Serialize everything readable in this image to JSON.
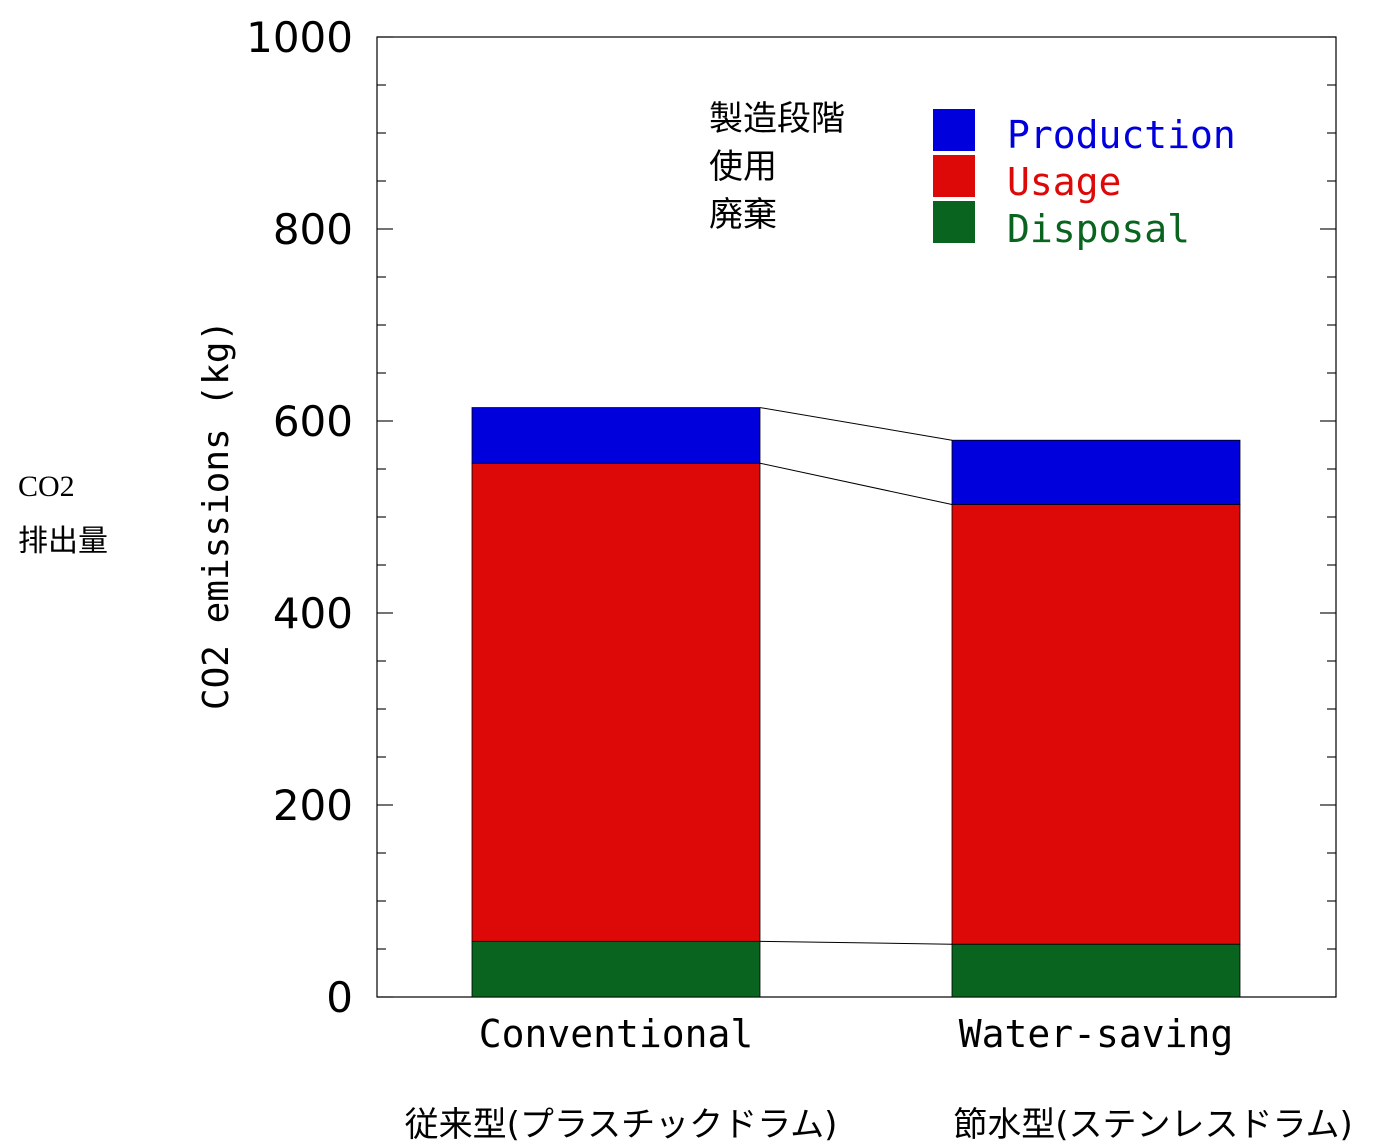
{
  "side_label": {
    "line1": "CO2",
    "line2": "排出量"
  },
  "colors": {
    "production": "#0000dd",
    "usage": "#dd0808",
    "disposal": "#08641e",
    "axis": "#000000"
  },
  "chart_data": {
    "type": "bar",
    "stacked": true,
    "categories": [
      "Conventional",
      "Water-saving"
    ],
    "category_sublabels": [
      "従来型(プラスチックドラム)",
      "節水型(ステンレスドラム)"
    ],
    "ylabel": "CO2 emissions (kg)",
    "ylim": [
      0,
      1000
    ],
    "yticks": [
      0,
      200,
      400,
      600,
      800,
      1000
    ],
    "series": [
      {
        "name": "Disposal",
        "name_ja": "廃棄",
        "key": "disposal",
        "values": [
          58,
          55
        ]
      },
      {
        "name": "Usage",
        "name_ja": "使用",
        "key": "usage",
        "values": [
          498,
          458
        ]
      },
      {
        "name": "Production",
        "name_ja": "製造段階",
        "key": "production",
        "values": [
          58,
          67
        ]
      }
    ],
    "legend_placement": "top-right",
    "grid": false,
    "connector_lines": true
  }
}
